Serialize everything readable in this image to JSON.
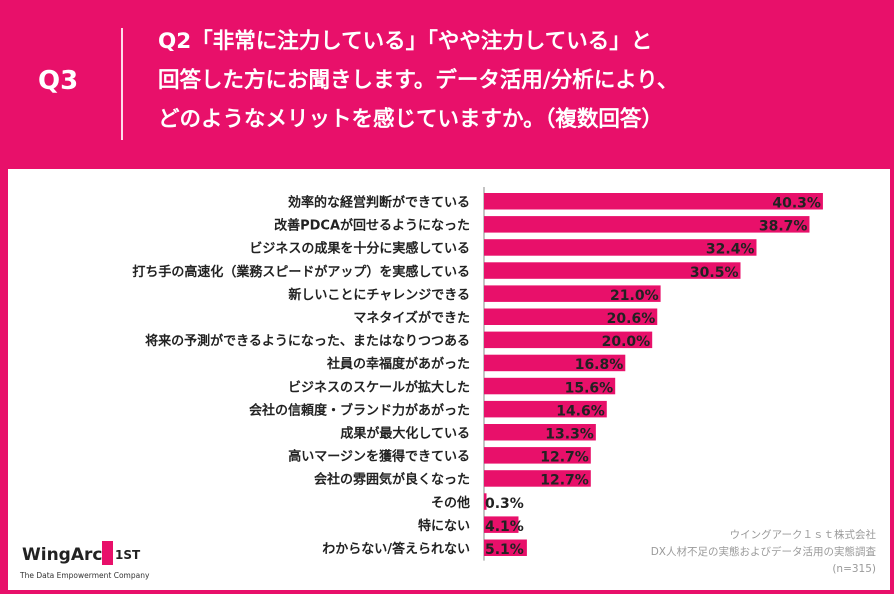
{
  "header": {
    "question_id": "Q3",
    "question_lines": [
      "Q2「非常に注力している」「やや注力している」と",
      "回答した方にお聞きします。データ活用/分析により、",
      "どのようなメリットを感じていますか。（複数回答）"
    ]
  },
  "chart_data": {
    "type": "bar",
    "orientation": "horizontal",
    "categories": [
      "効率的な経営判断ができている",
      "改善PDCAが回せるようになった",
      "ビジネスの成果を十分に実感している",
      "打ち手の高速化（業務スピードがアップ）を実感している",
      "新しいことにチャレンジできる",
      "マネタイズができた",
      "将来の予測ができるようになった、またはなりつつある",
      "社員の幸福度があがった",
      "ビジネスのスケールが拡大した",
      "会社の信頼度・ブランド力があがった",
      "成果が最大化している",
      "高いマージンを獲得できている",
      "会社の雰囲気が良くなった",
      "その他",
      "特にない",
      "わからない/答えられない"
    ],
    "values": [
      40.3,
      38.7,
      32.4,
      30.5,
      21.0,
      20.6,
      20.0,
      16.8,
      15.6,
      14.6,
      13.3,
      12.7,
      12.7,
      0.3,
      4.1,
      5.1
    ],
    "labels": [
      "40.3%",
      "38.7%",
      "32.4%",
      "30.5%",
      "21.0%",
      "20.6%",
      "20.0%",
      "16.8%",
      "15.6%",
      "14.6%",
      "13.3%",
      "12.7%",
      "12.7%",
      "0.3%",
      "4.1%",
      "5.1%"
    ],
    "unit": "%",
    "xlim": [
      0,
      100
    ],
    "bar_color": "#e8106a"
  },
  "logo": {
    "name": "WingArc",
    "mark": "1ST",
    "tagline": "The Data Empowerment Company"
  },
  "source": {
    "company": "ウイングアーク１ｓｔ株式会社",
    "survey": "DX人材不足の実態およびデータ活用の実態調査",
    "sample": "(n=315)"
  }
}
